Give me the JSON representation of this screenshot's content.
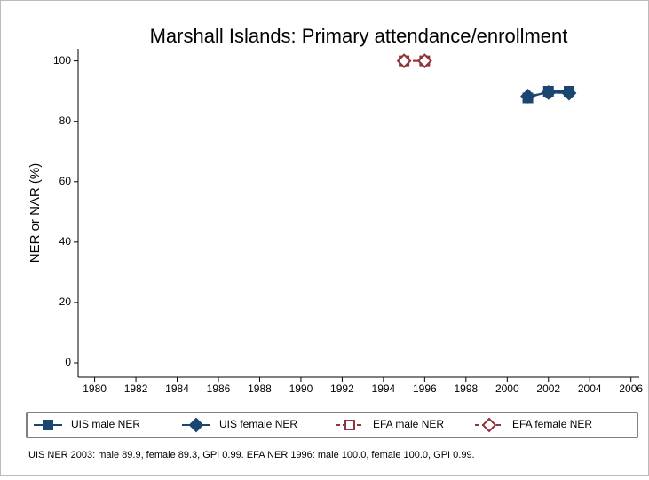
{
  "chart_data": {
    "type": "line",
    "title": "Marshall Islands: Primary attendance/enrollment",
    "y_label": "NER or NAR (%)",
    "note": "UIS NER 2003: male 89.9, female 89.3, GPI 0.99. EFA NER 1996: male 100.0, female 100.0, GPI 0.99.",
    "x": [
      1995,
      1996,
      2001,
      2002,
      2003
    ],
    "series": [
      {
        "name": "UIS male NER",
        "color": "#1a476f",
        "marker": "square",
        "filled": true,
        "dashed": false,
        "values": [
          null,
          null,
          87.7,
          89.9,
          89.9
        ]
      },
      {
        "name": "UIS female NER",
        "color": "#1a476f",
        "marker": "diamond",
        "filled": true,
        "dashed": false,
        "values": [
          null,
          null,
          88.3,
          89.5,
          89.3
        ]
      },
      {
        "name": "EFA male NER",
        "color": "#90353b",
        "marker": "square",
        "filled": false,
        "dashed": true,
        "values": [
          100,
          100,
          null,
          null,
          null
        ]
      },
      {
        "name": "EFA female NER",
        "color": "#90353b",
        "marker": "diamond",
        "filled": false,
        "dashed": true,
        "values": [
          100,
          100,
          null,
          null,
          null
        ]
      }
    ],
    "xlim": [
      1979.2,
      2006.4
    ],
    "ylim": [
      -4.7,
      104
    ],
    "xticks": [
      1980,
      1982,
      1984,
      1986,
      1988,
      1990,
      1992,
      1994,
      1996,
      1998,
      2000,
      2002,
      2004,
      2006
    ],
    "yticks": [
      0,
      20,
      40,
      60,
      80,
      100
    ],
    "grid": false,
    "legend": "bottom"
  }
}
